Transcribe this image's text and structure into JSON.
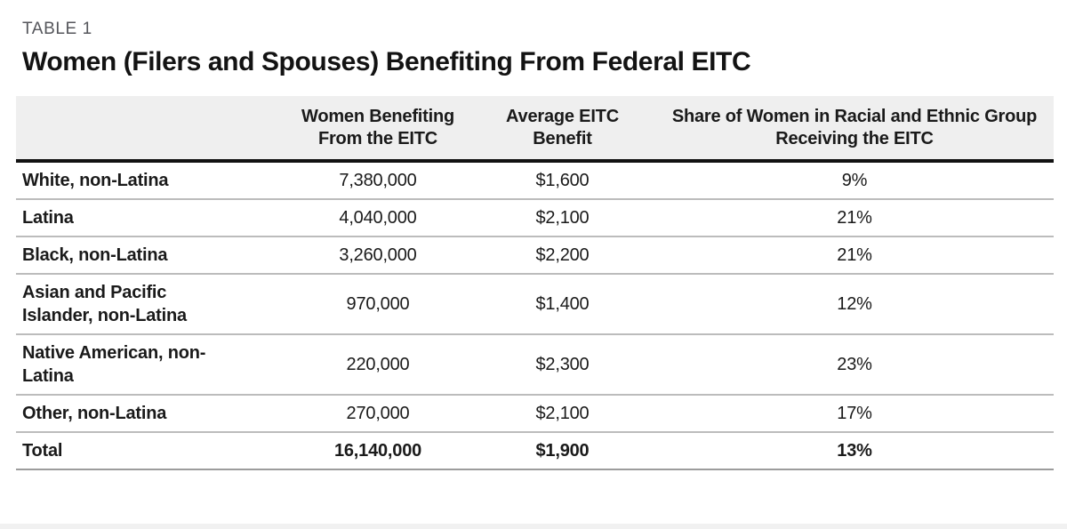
{
  "meta": {
    "table_label": "TABLE 1",
    "title": "Women (Filers and Spouses) Benefiting From Federal EITC"
  },
  "columns": {
    "group": "",
    "women": "Women Benefiting\nFrom the EITC",
    "benefit": "Average EITC\nBenefit",
    "share": "Share of Women in Racial and Ethnic Group\nReceiving the EITC"
  },
  "rows": [
    {
      "label": "White, non-Latina",
      "women": "7,380,000",
      "benefit": "$1,600",
      "share": "9%"
    },
    {
      "label": "Latina",
      "women": "4,040,000",
      "benefit": "$2,100",
      "share": "21%"
    },
    {
      "label": "Black, non-Latina",
      "women": "3,260,000",
      "benefit": "$2,200",
      "share": "21%"
    },
    {
      "label": "Asian and Pacific\nIslander, non-Latina",
      "women": "970,000",
      "benefit": "$1,400",
      "share": "12%"
    },
    {
      "label": "Native American, non-\nLatina",
      "women": "220,000",
      "benefit": "$2,300",
      "share": "23%"
    },
    {
      "label": "Other, non-Latina",
      "women": "270,000",
      "benefit": "$2,100",
      "share": "17%"
    }
  ],
  "total": {
    "label": "Total",
    "women": "16,140,000",
    "benefit": "$1,900",
    "share": "13%"
  },
  "colors": {
    "header_background": "#efefef",
    "heavy_rule": "#121212",
    "row_rule": "#bcbcbc",
    "total_rule": "#9c9c9c",
    "table_label_text": "#55565b",
    "body_text": "#1a1a1a"
  },
  "chart_data": {
    "type": "table",
    "title": "Women (Filers and Spouses) Benefiting From Federal EITC",
    "caption": "TABLE 1",
    "columns": [
      "Group",
      "Women Benefiting From the EITC",
      "Average EITC Benefit",
      "Share of Women in Racial and Ethnic Group Receiving the EITC"
    ],
    "rows": [
      [
        "White, non-Latina",
        7380000,
        1600,
        "9%"
      ],
      [
        "Latina",
        4040000,
        2100,
        "21%"
      ],
      [
        "Black, non-Latina",
        3260000,
        2200,
        "21%"
      ],
      [
        "Asian and Pacific Islander, non-Latina",
        970000,
        1400,
        "12%"
      ],
      [
        "Native American, non-Latina",
        220000,
        2300,
        "23%"
      ],
      [
        "Other, non-Latina",
        270000,
        2100,
        "17%"
      ],
      [
        "Total",
        16140000,
        1900,
        "13%"
      ]
    ]
  }
}
